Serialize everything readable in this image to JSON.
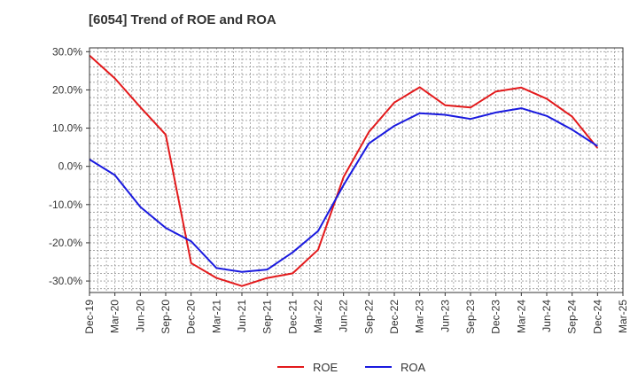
{
  "chart_data": {
    "type": "line",
    "title": "[6054]  Trend of ROE and ROA",
    "xlabel": "",
    "ylabel": "",
    "categories": [
      "Dec-19",
      "Mar-20",
      "Jun-20",
      "Sep-20",
      "Dec-20",
      "Mar-21",
      "Jun-21",
      "Sep-21",
      "Dec-21",
      "Mar-22",
      "Jun-22",
      "Sep-22",
      "Dec-22",
      "Mar-23",
      "Jun-23",
      "Sep-23",
      "Dec-23",
      "Mar-24",
      "Jun-24",
      "Sep-24",
      "Dec-24",
      "Mar-25"
    ],
    "ylim": [
      -33,
      31
    ],
    "yticks": [
      30,
      20,
      10,
      0,
      -10,
      -20,
      -30
    ],
    "ytick_labels": [
      "30.0%",
      "20.0%",
      "10.0%",
      "0.0%",
      "-10.0%",
      "-20.0%",
      "-30.0%"
    ],
    "grid": true,
    "legend_position": "bottom",
    "series": [
      {
        "name": "ROE",
        "color": "#e31a1c",
        "values": [
          29.0,
          23.0,
          15.5,
          8.3,
          -25.3,
          -29.2,
          -31.3,
          -29.2,
          -28.0,
          -21.8,
          -2.8,
          9.0,
          16.7,
          20.7,
          16.0,
          15.4,
          19.6,
          20.6,
          17.7,
          13.0,
          4.8,
          null
        ]
      },
      {
        "name": "ROA",
        "color": "#1a1adf",
        "values": [
          1.8,
          -2.3,
          -10.6,
          -16.1,
          -19.6,
          -26.6,
          -27.6,
          -27.0,
          -22.5,
          -16.9,
          -4.9,
          6.0,
          10.6,
          13.9,
          13.5,
          12.4,
          14.1,
          15.2,
          13.2,
          9.6,
          5.3,
          null
        ]
      }
    ]
  }
}
